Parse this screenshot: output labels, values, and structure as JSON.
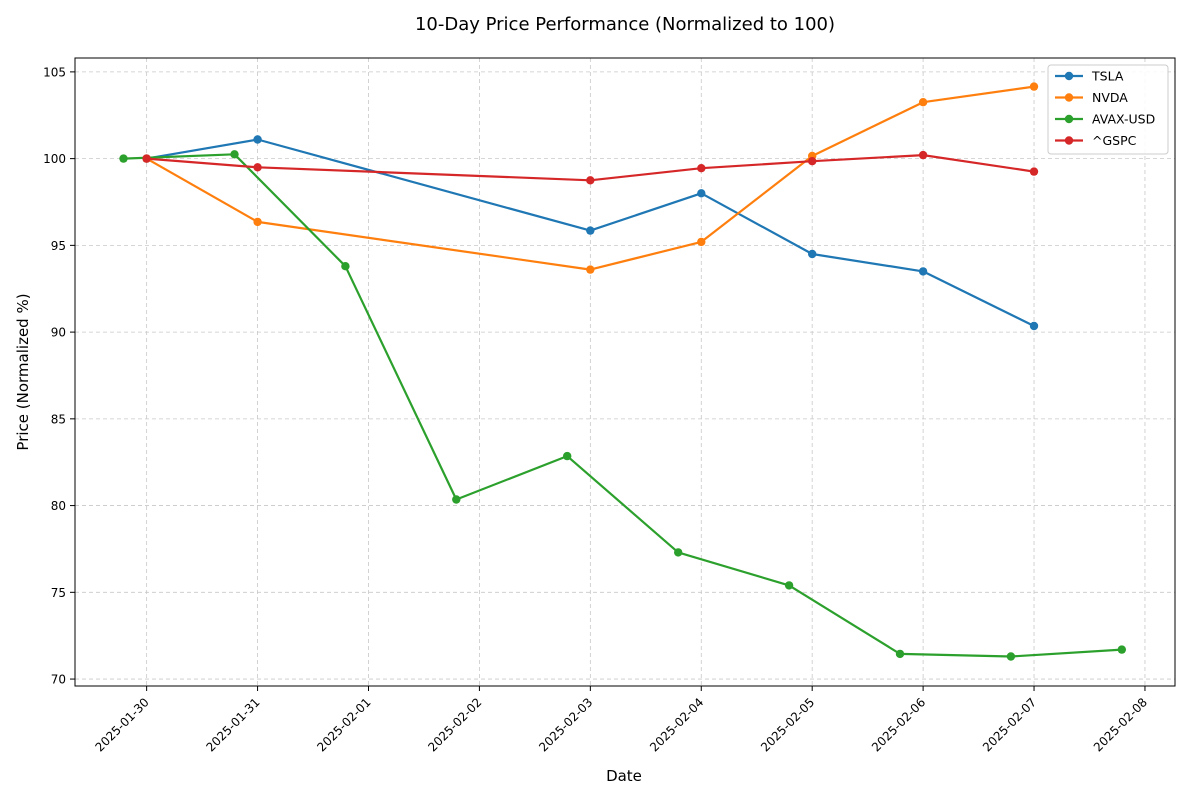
{
  "chart_data": {
    "type": "line",
    "title": "10-Day Price Performance (Normalized to 100)",
    "xlabel": "Date",
    "ylabel": "Price (Normalized %)",
    "ylim": [
      69.6,
      105.8
    ],
    "yticks": [
      70,
      75,
      80,
      85,
      90,
      95,
      100,
      105
    ],
    "xticks": [
      "2025-01-30",
      "2025-01-31",
      "2025-02-01",
      "2025-02-02",
      "2025-02-03",
      "2025-02-04",
      "2025-02-05",
      "2025-02-06",
      "2025-02-07",
      "2025-02-08"
    ],
    "xlim": [
      "2025-01-29 08:30",
      "2025-02-08 06:30"
    ],
    "grid": true,
    "legend_position": "top-right",
    "series": [
      {
        "name": "TSLA",
        "color": "#1f77b4",
        "points": [
          {
            "x": "2025-01-30",
            "y": 100.0
          },
          {
            "x": "2025-01-31",
            "y": 101.1
          },
          {
            "x": "2025-02-03",
            "y": 95.85
          },
          {
            "x": "2025-02-04",
            "y": 98.0
          },
          {
            "x": "2025-02-05",
            "y": 94.5
          },
          {
            "x": "2025-02-06",
            "y": 93.5
          },
          {
            "x": "2025-02-07",
            "y": 90.35
          }
        ]
      },
      {
        "name": "NVDA",
        "color": "#ff7f0e",
        "points": [
          {
            "x": "2025-01-30",
            "y": 100.0
          },
          {
            "x": "2025-01-31",
            "y": 96.35
          },
          {
            "x": "2025-02-03",
            "y": 93.6
          },
          {
            "x": "2025-02-04",
            "y": 95.2
          },
          {
            "x": "2025-02-05",
            "y": 100.15
          },
          {
            "x": "2025-02-06",
            "y": 103.25
          },
          {
            "x": "2025-02-07",
            "y": 104.15
          }
        ]
      },
      {
        "name": "AVAX-USD",
        "color": "#2ca02c",
        "points": [
          {
            "x": "2025-01-29 19:00",
            "y": 100.0
          },
          {
            "x": "2025-01-30 19:00",
            "y": 100.25
          },
          {
            "x": "2025-01-31 19:00",
            "y": 93.8
          },
          {
            "x": "2025-02-01 19:00",
            "y": 80.35
          },
          {
            "x": "2025-02-02 19:00",
            "y": 82.85
          },
          {
            "x": "2025-02-03 19:00",
            "y": 77.3
          },
          {
            "x": "2025-02-04 19:00",
            "y": 75.4
          },
          {
            "x": "2025-02-05 19:00",
            "y": 71.45
          },
          {
            "x": "2025-02-06 19:00",
            "y": 71.3
          },
          {
            "x": "2025-02-07 19:00",
            "y": 71.7
          }
        ]
      },
      {
        "name": "^GSPC",
        "color": "#d62728",
        "points": [
          {
            "x": "2025-01-30",
            "y": 100.0
          },
          {
            "x": "2025-01-31",
            "y": 99.5
          },
          {
            "x": "2025-02-03",
            "y": 98.75
          },
          {
            "x": "2025-02-04",
            "y": 99.45
          },
          {
            "x": "2025-02-05",
            "y": 99.85
          },
          {
            "x": "2025-02-06",
            "y": 100.2
          },
          {
            "x": "2025-02-07",
            "y": 99.25
          }
        ]
      }
    ]
  }
}
